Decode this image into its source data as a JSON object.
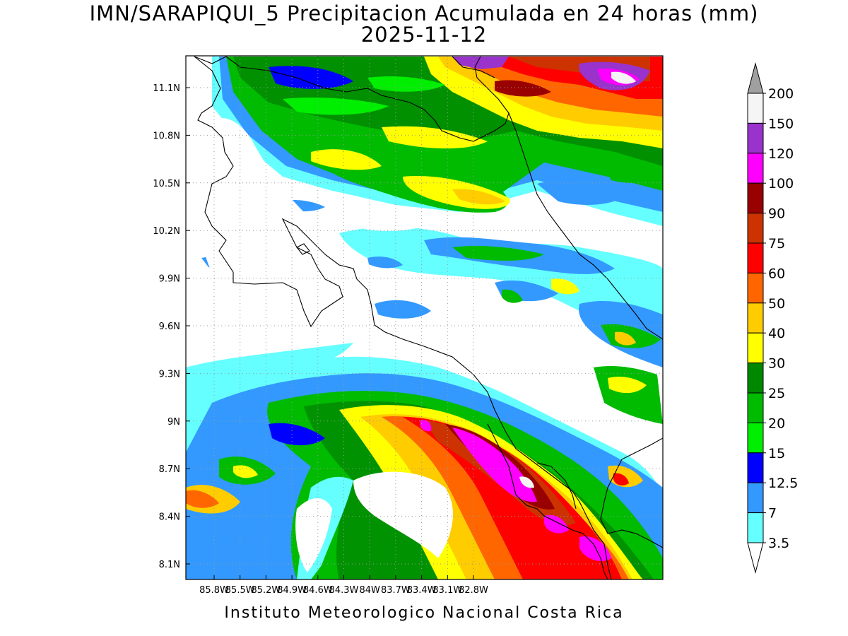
{
  "title_line1": "IMN/SARAPIQUI_5 Precipitacion Acumulada en 24 horas (mm)",
  "title_line2": "2025-11-12",
  "footer": "Instituto Meteorologico Nacional Costa Rica",
  "map": {
    "lat_labels": [
      "11.1N",
      "10.8N",
      "10.5N",
      "10.2N",
      "9.9N",
      "9.6N",
      "9.3N",
      "9N",
      "8.7N",
      "8.4N",
      "8.1N"
    ],
    "lon_labels": [
      "85.8W",
      "85.5W",
      "85.2W",
      "84.9W",
      "84.6W",
      "84.3W",
      "84W",
      "83.7W",
      "83.4W",
      "83.1W",
      "82.8W"
    ],
    "grid": "dotted"
  },
  "colorbar": {
    "labels": [
      "200",
      "150",
      "120",
      "100",
      "90",
      "75",
      "60",
      "50",
      "40",
      "30",
      "25",
      "20",
      "15",
      "12.5",
      "7",
      "3.5"
    ],
    "colors": [
      "#a0a0a0",
      "#f5f5f5",
      "#9933cc",
      "#ff00ff",
      "#990000",
      "#cc3300",
      "#ff0000",
      "#ff6600",
      "#ffcc00",
      "#ffff00",
      "#008800",
      "#00bb00",
      "#00ee00",
      "#0000ff",
      "#3399ff",
      "#66ffff",
      "#ffffff"
    ]
  }
}
